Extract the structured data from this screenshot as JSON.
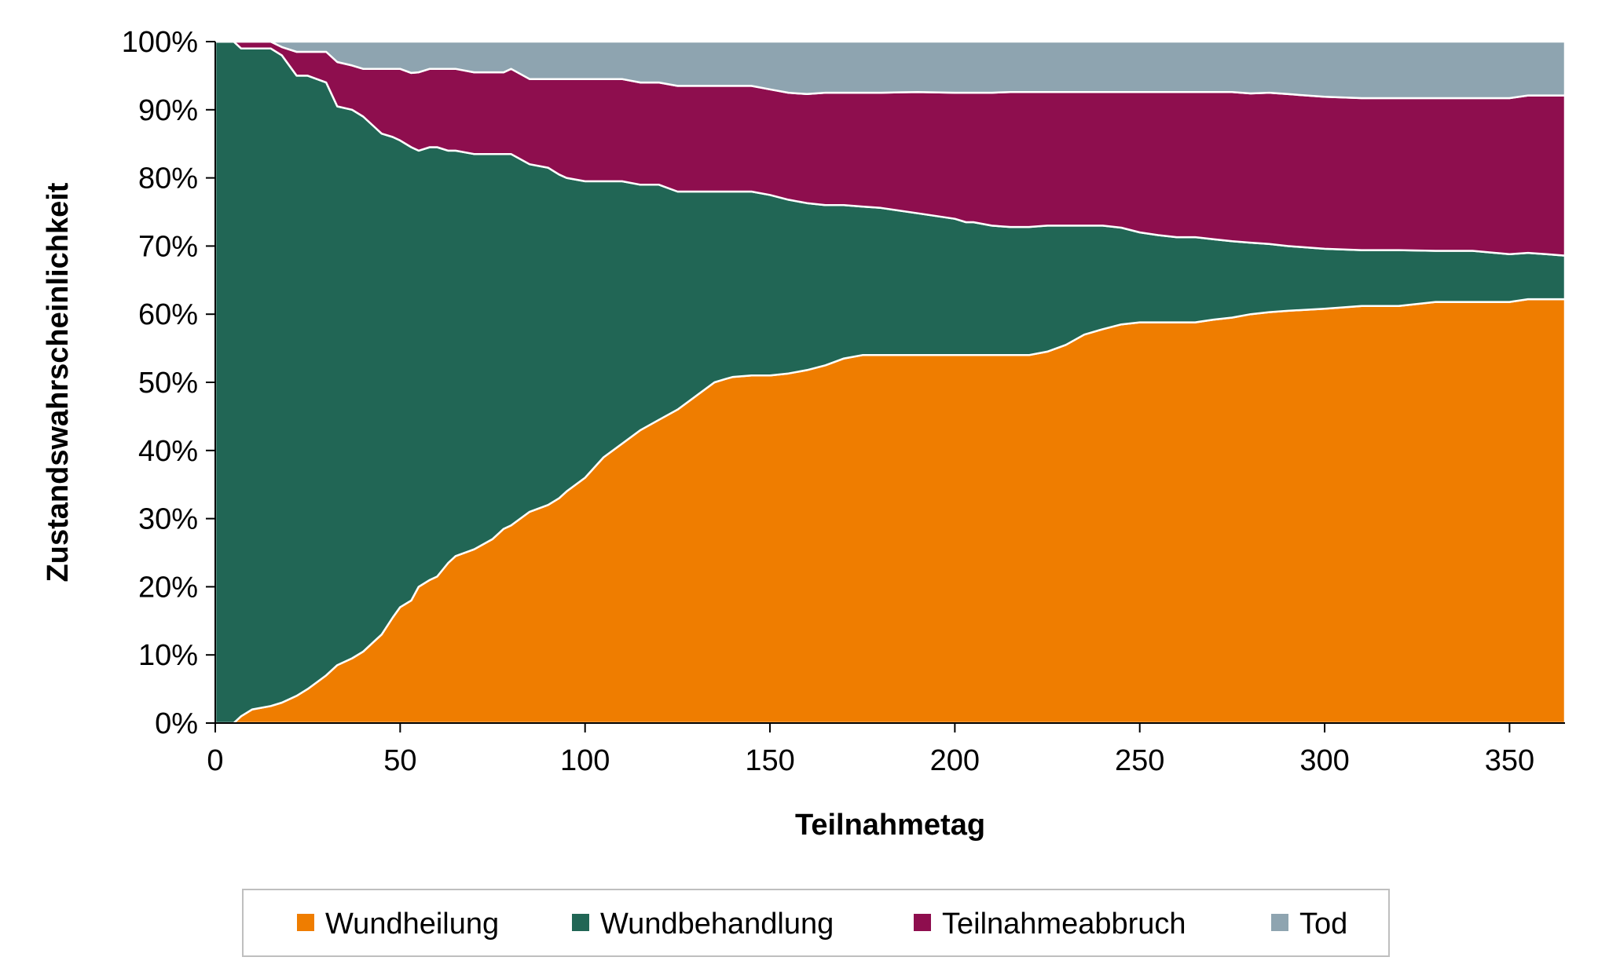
{
  "chart_data": {
    "type": "area",
    "stacked": true,
    "xlabel": "Teilnahmetag",
    "ylabel": "Zustandswahrscheinlichkeit",
    "xlim": [
      0,
      365
    ],
    "ylim": [
      0,
      100
    ],
    "x_ticks": [
      0,
      50,
      100,
      150,
      200,
      250,
      300,
      350
    ],
    "x_tick_labels": [
      "0",
      "50",
      "100",
      "150",
      "200",
      "250",
      "300",
      "350"
    ],
    "y_ticks": [
      0,
      10,
      20,
      30,
      40,
      50,
      60,
      70,
      80,
      90,
      100
    ],
    "y_tick_labels": [
      "0%",
      "10%",
      "20%",
      "30%",
      "40%",
      "50%",
      "60%",
      "70%",
      "80%",
      "90%",
      "100%"
    ],
    "grid": false,
    "legend_position": "bottom",
    "x": [
      0,
      5,
      7,
      10,
      15,
      18,
      22,
      25,
      30,
      33,
      37,
      40,
      43,
      45,
      48,
      50,
      53,
      55,
      58,
      60,
      63,
      65,
      70,
      75,
      78,
      80,
      85,
      90,
      93,
      95,
      100,
      105,
      110,
      115,
      120,
      125,
      130,
      135,
      138,
      140,
      145,
      150,
      155,
      160,
      165,
      170,
      175,
      180,
      190,
      200,
      203,
      205,
      210,
      215,
      220,
      225,
      230,
      235,
      240,
      245,
      250,
      255,
      260,
      265,
      270,
      275,
      280,
      285,
      290,
      300,
      310,
      320,
      330,
      340,
      350,
      355,
      360,
      365
    ],
    "series": [
      {
        "name": "Wundheilung",
        "color": "#EF7D00",
        "values": [
          0,
          0,
          1,
          2,
          2.5,
          3,
          4,
          5,
          7,
          8.5,
          9.5,
          10.5,
          12,
          13,
          15.5,
          17,
          18,
          20,
          21,
          21.5,
          23.5,
          24.5,
          25.5,
          27,
          28.5,
          29,
          31,
          32,
          33,
          34,
          36,
          39,
          41,
          43,
          44.5,
          46,
          48,
          50,
          50.5,
          50.8,
          51,
          51,
          51.3,
          51.8,
          52.5,
          53.5,
          54,
          54,
          54,
          54,
          54,
          54,
          54,
          54,
          54,
          54.5,
          55.5,
          57,
          57.8,
          58.5,
          58.8,
          58.8,
          58.8,
          58.8,
          59.2,
          59.5,
          60,
          60.3,
          60.5,
          60.8,
          61.2,
          61.2,
          61.8,
          61.8,
          61.8,
          62.2,
          62.2,
          62.2
        ]
      },
      {
        "name": "Wundbehandlung",
        "color": "#216655",
        "values": [
          100,
          100,
          98,
          97,
          96.5,
          95,
          91,
          90,
          87,
          82,
          80.5,
          78.5,
          75.5,
          73.5,
          70.5,
          68.5,
          66.5,
          64,
          63.5,
          63,
          60.5,
          59.5,
          58,
          56.5,
          55,
          54.5,
          51,
          49.5,
          47.5,
          46,
          43.5,
          40.5,
          38.5,
          36,
          34.5,
          32,
          30,
          28,
          27.5,
          27.2,
          27,
          26.5,
          25.5,
          24.5,
          23.5,
          22.5,
          21.8,
          21.6,
          20.8,
          20,
          19.5,
          19.5,
          19,
          18.8,
          18.8,
          18.5,
          17.5,
          16,
          15.2,
          14.2,
          13.2,
          12.8,
          12.5,
          12.5,
          11.8,
          11.2,
          10.5,
          10,
          9.5,
          8.8,
          8.2,
          8.2,
          7.5,
          7.5,
          7,
          6.8,
          6.6,
          6.4
        ]
      },
      {
        "name": "Teilnahmeabbruch",
        "color": "#8E0E4E",
        "values": [
          0,
          0,
          1,
          1,
          1,
          1.2,
          3.5,
          3.5,
          4.5,
          6.5,
          6.5,
          7,
          8.5,
          9.5,
          10,
          10.5,
          10.9,
          11.5,
          11.5,
          11.5,
          12,
          12,
          12,
          12,
          12,
          12.5,
          12.5,
          13,
          14,
          14.5,
          15,
          15,
          15,
          15,
          15,
          15.5,
          15.5,
          15.5,
          15.5,
          15.5,
          15.5,
          15.5,
          15.7,
          16,
          16.5,
          16.5,
          16.7,
          16.9,
          17.8,
          18.5,
          19,
          19,
          19.5,
          19.8,
          19.8,
          19.6,
          19.6,
          19.6,
          19.6,
          19.9,
          20.6,
          21,
          21.3,
          21.3,
          21.6,
          21.9,
          21.9,
          22.2,
          22.3,
          22.3,
          22.3,
          22.3,
          22.4,
          22.4,
          22.9,
          23.1,
          23.3,
          23.5
        ]
      },
      {
        "name": "Tod",
        "color": "#8EA4B0",
        "values": [
          0,
          0,
          0,
          0,
          0,
          0.8,
          1.5,
          1.5,
          1.5,
          3,
          3.5,
          4,
          4,
          4,
          4,
          4,
          4.6,
          4.5,
          4,
          4,
          4,
          4,
          4.5,
          4.5,
          4.5,
          4,
          5.5,
          5.5,
          5.5,
          5.5,
          5.5,
          5.5,
          5.5,
          6,
          6,
          6.5,
          6.5,
          6.5,
          6.5,
          6.5,
          6.5,
          7,
          7.5,
          7.7,
          7.5,
          7.5,
          7.5,
          7.5,
          7.4,
          7.5,
          7.5,
          7.5,
          7.5,
          7.4,
          7.4,
          7.4,
          7.4,
          7.4,
          7.4,
          7.4,
          7.4,
          7.4,
          7.4,
          7.4,
          7.4,
          7.4,
          7.6,
          7.5,
          7.7,
          8.1,
          8.3,
          8.3,
          8.3,
          8.3,
          8.3,
          7.9,
          7.9,
          7.9
        ]
      }
    ]
  },
  "legend": {
    "items": [
      {
        "label": "Wundheilung",
        "color": "#EF7D00"
      },
      {
        "label": "Wundbehandlung",
        "color": "#216655"
      },
      {
        "label": "Teilnahmeabbruch",
        "color": "#8E0E4E"
      },
      {
        "label": "Tod",
        "color": "#8EA4B0"
      }
    ]
  }
}
